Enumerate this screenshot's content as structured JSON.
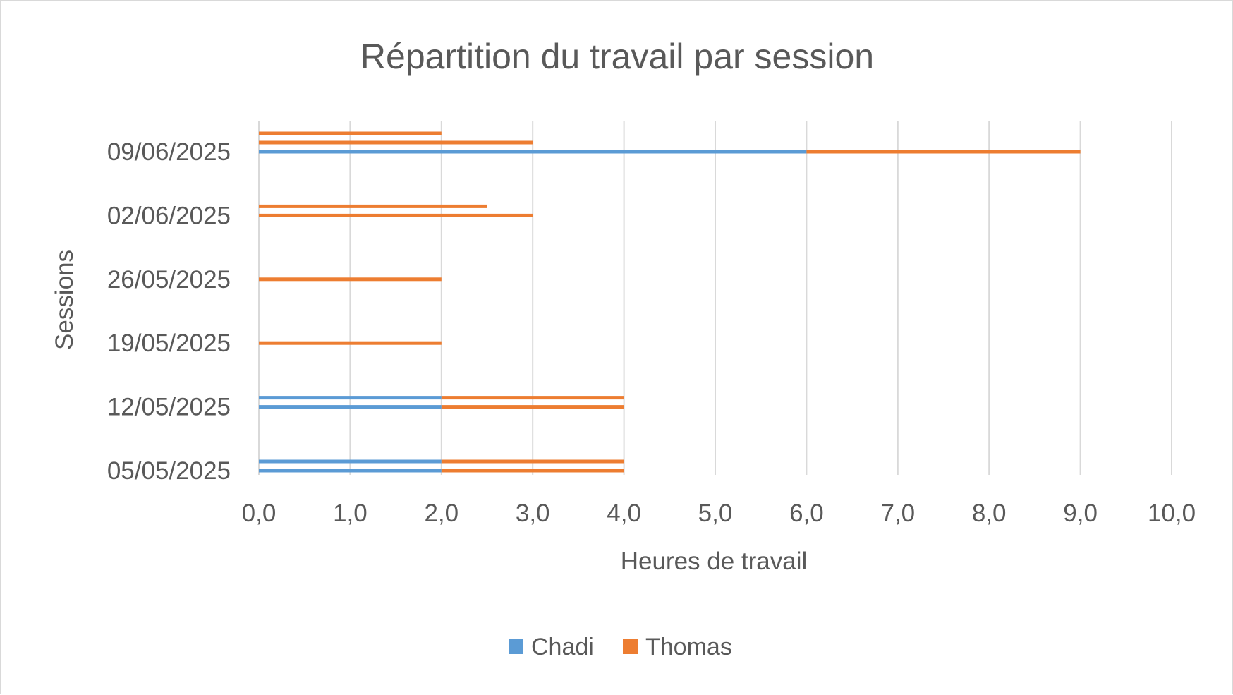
{
  "chart_data": {
    "type": "bar",
    "orientation": "horizontal",
    "stacked": true,
    "title": "Répartition du travail par session",
    "xlabel": "Heures de travail",
    "ylabel": "Sessions",
    "xlim": [
      0,
      10
    ],
    "x_ticks": [
      "0,0",
      "1,0",
      "2,0",
      "3,0",
      "4,0",
      "5,0",
      "6,0",
      "7,0",
      "8,0",
      "9,0",
      "10,0"
    ],
    "grid": "vertical",
    "legend_position": "bottom",
    "categories": [
      "05/05/2025",
      "12/05/2025",
      "19/05/2025",
      "26/05/2025",
      "02/06/2025",
      "09/06/2025"
    ],
    "series": [
      {
        "name": "Chadi",
        "color": "#5b9bd5"
      },
      {
        "name": "Thomas",
        "color": "#ed7d31"
      }
    ],
    "bars": [
      {
        "session": "05/05/2025",
        "slot": 0,
        "Chadi": 2.0,
        "Thomas": 2.0
      },
      {
        "session": "05/05/2025",
        "slot": 1,
        "Chadi": 2.0,
        "Thomas": 2.0
      },
      {
        "session": "12/05/2025",
        "slot": 0,
        "Chadi": 2.0,
        "Thomas": 2.0
      },
      {
        "session": "12/05/2025",
        "slot": 1,
        "Chadi": 2.0,
        "Thomas": 2.0
      },
      {
        "session": "19/05/2025",
        "slot": 0,
        "Chadi": 0,
        "Thomas": 2.0
      },
      {
        "session": "26/05/2025",
        "slot": 0,
        "Chadi": 0,
        "Thomas": 2.0
      },
      {
        "session": "02/06/2025",
        "slot": 0,
        "Chadi": 0,
        "Thomas": 3.0
      },
      {
        "session": "02/06/2025",
        "slot": 1,
        "Chadi": 0,
        "Thomas": 2.5
      },
      {
        "session": "09/06/2025",
        "slot": 0,
        "Chadi": 6.0,
        "Thomas": 3.0
      },
      {
        "session": "09/06/2025",
        "slot": 1,
        "Chadi": 0,
        "Thomas": 3.0
      },
      {
        "session": "09/06/2025",
        "slot": 2,
        "Chadi": 0,
        "Thomas": 2.0
      }
    ]
  }
}
